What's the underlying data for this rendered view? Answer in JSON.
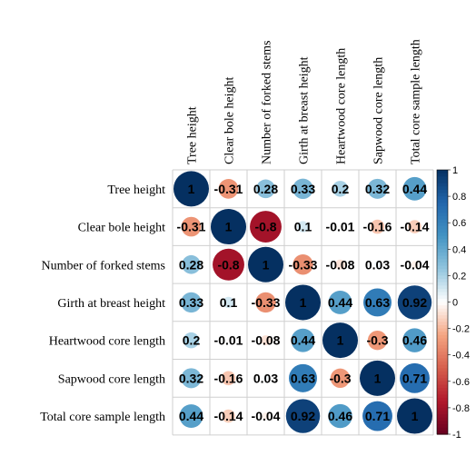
{
  "chart_data": {
    "type": "heatmap",
    "variables": [
      "Tree height",
      "Clear bole height",
      "Number of forked stems",
      "Girth at breast height",
      "Heartwood core length",
      "Sapwood core length",
      "Total core sample length"
    ],
    "matrix": [
      [
        1,
        -0.31,
        0.28,
        0.33,
        0.2,
        0.32,
        0.44
      ],
      [
        -0.31,
        1,
        -0.8,
        0.1,
        -0.01,
        -0.16,
        -0.14
      ],
      [
        0.28,
        -0.8,
        1,
        -0.33,
        -0.08,
        0.03,
        -0.04
      ],
      [
        0.33,
        0.1,
        -0.33,
        1,
        0.44,
        0.63,
        0.92
      ],
      [
        0.2,
        -0.01,
        -0.08,
        0.44,
        1,
        -0.3,
        0.46
      ],
      [
        0.32,
        -0.16,
        0.03,
        0.63,
        -0.3,
        1,
        0.71
      ],
      [
        0.44,
        -0.14,
        -0.04,
        0.92,
        0.46,
        0.71,
        1
      ]
    ],
    "cell_labels": [
      [
        "1",
        "-0.31",
        "0.28",
        "0.33",
        "0.2",
        "0.32",
        "0.44"
      ],
      [
        "-0.31",
        "1",
        "-0.8",
        "0.1",
        "-0.01",
        "-0.16",
        "-0.14"
      ],
      [
        "0.28",
        "-0.8",
        "1",
        "-0.33",
        "-0.08",
        "0.03",
        "-0.04"
      ],
      [
        "0.33",
        "0.1",
        "-0.33",
        "1",
        "0.44",
        "0.63",
        "0.92"
      ],
      [
        "0.2",
        "-0.01",
        "-0.08",
        "0.44",
        "1",
        "-0.3",
        "0.46"
      ],
      [
        "0.32",
        "-0.16",
        "0.03",
        "0.63",
        "-0.3",
        "1",
        "0.71"
      ],
      [
        "0.44",
        "-0.14",
        "-0.04",
        "0.92",
        "0.46",
        "0.71",
        "1"
      ]
    ],
    "color_scale": {
      "min": -1,
      "max": 1,
      "ticks": [
        "1",
        "0.8",
        "0.6",
        "0.4",
        "0.2",
        "0",
        "-0.2",
        "-0.4",
        "-0.6",
        "-0.8",
        "-1"
      ],
      "low_color": "#67001F",
      "mid_color": "#FFFFFF",
      "high_color": "#053061"
    },
    "marker": "circle",
    "legend": "right"
  }
}
